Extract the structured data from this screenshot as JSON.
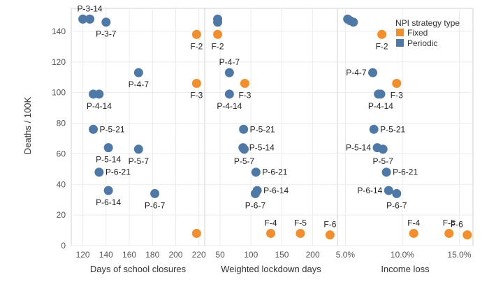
{
  "chart_data": {
    "type": "scatter",
    "ylabel": "Deaths / 100K",
    "ylim": [
      0,
      155
    ],
    "yticks": [
      0,
      20,
      40,
      60,
      80,
      100,
      120,
      140
    ],
    "grid": true,
    "legend": {
      "title": "NPI strategy type",
      "placement": "top-right",
      "entries": [
        {
          "name": "Fixed",
          "color": "#f28e2b"
        },
        {
          "name": "Periodic",
          "color": "#4e79a7"
        }
      ]
    },
    "colors": {
      "Fixed": "#f28e2b",
      "Periodic": "#4e79a7"
    },
    "panels": [
      {
        "xlabel": "Days of school closures",
        "xlim": [
          110,
          225
        ],
        "xticks": [
          {
            "v": 120,
            "t": "120"
          },
          {
            "v": 140,
            "t": "140"
          },
          {
            "v": 160,
            "t": "160"
          },
          {
            "v": 180,
            "t": "180"
          },
          {
            "v": 200,
            "t": "200"
          },
          {
            "v": 220,
            "t": "220"
          }
        ],
        "points": [
          {
            "x": 120,
            "y": 148,
            "type": "Periodic",
            "label": ""
          },
          {
            "x": 126,
            "y": 148,
            "type": "Periodic",
            "label": "P-3-14",
            "lpos": "above"
          },
          {
            "x": 140,
            "y": 146,
            "type": "Periodic",
            "label": "P-3-7",
            "lpos": "below"
          },
          {
            "x": 218,
            "y": 138,
            "type": "Fixed",
            "label": "F-2",
            "lpos": "below"
          },
          {
            "x": 168,
            "y": 113,
            "type": "Periodic",
            "label": "P-4-7",
            "lpos": "below"
          },
          {
            "x": 218,
            "y": 106,
            "type": "Fixed",
            "label": "F-3",
            "lpos": "below"
          },
          {
            "x": 129,
            "y": 99,
            "type": "Periodic",
            "label": ""
          },
          {
            "x": 134,
            "y": 99,
            "type": "Periodic",
            "label": "P-4-14",
            "lpos": "below"
          },
          {
            "x": 129,
            "y": 76,
            "type": "Periodic",
            "label": "P-5-21",
            "lpos": "right"
          },
          {
            "x": 142,
            "y": 64,
            "type": "Periodic",
            "label": "P-5-14",
            "lpos": "below"
          },
          {
            "x": 168,
            "y": 63,
            "type": "Periodic",
            "label": "P-5-7",
            "lpos": "below"
          },
          {
            "x": 134,
            "y": 48,
            "type": "Periodic",
            "label": "P-6-21",
            "lpos": "right"
          },
          {
            "x": 142,
            "y": 36,
            "type": "Periodic",
            "label": "P-6-14",
            "lpos": "below"
          },
          {
            "x": 182,
            "y": 34,
            "type": "Periodic",
            "label": "P-6-7",
            "lpos": "below"
          },
          {
            "x": 218,
            "y": 8,
            "type": "Fixed",
            "label": ""
          }
        ]
      },
      {
        "xlabel": "Weighted lockdown days",
        "xlim": [
          25,
          240
        ],
        "xticks": [
          {
            "v": 50,
            "t": "50"
          },
          {
            "v": 100,
            "t": "100"
          },
          {
            "v": 150,
            "t": "150"
          },
          {
            "v": 200,
            "t": "200"
          }
        ],
        "points": [
          {
            "x": 46,
            "y": 148,
            "type": "Periodic",
            "label": ""
          },
          {
            "x": 46,
            "y": 146,
            "type": "Periodic",
            "label": ""
          },
          {
            "x": 46,
            "y": 138,
            "type": "Fixed",
            "label": "F-2",
            "lpos": "below"
          },
          {
            "x": 65,
            "y": 113,
            "type": "Periodic",
            "label": "P-4-7",
            "lpos": "above"
          },
          {
            "x": 90,
            "y": 106,
            "type": "Fixed",
            "label": "F-3",
            "lpos": "below"
          },
          {
            "x": 65,
            "y": 99,
            "type": "Periodic",
            "label": "P-4-14",
            "lpos": "below"
          },
          {
            "x": 88,
            "y": 76,
            "type": "Periodic",
            "label": "P-5-21",
            "lpos": "right"
          },
          {
            "x": 87,
            "y": 64,
            "type": "Periodic",
            "label": "P-5-14",
            "lpos": "right"
          },
          {
            "x": 89,
            "y": 63,
            "type": "Periodic",
            "label": "P-5-7",
            "lpos": "below"
          },
          {
            "x": 108,
            "y": 48,
            "type": "Periodic",
            "label": "P-6-21",
            "lpos": "right"
          },
          {
            "x": 110,
            "y": 36,
            "type": "Periodic",
            "label": "P-6-14",
            "lpos": "right"
          },
          {
            "x": 107,
            "y": 34,
            "type": "Periodic",
            "label": "P-6-7",
            "lpos": "below"
          },
          {
            "x": 132,
            "y": 8,
            "type": "Fixed",
            "label": "F-4",
            "lpos": "above"
          },
          {
            "x": 180,
            "y": 8,
            "type": "Fixed",
            "label": "F-5",
            "lpos": "above"
          },
          {
            "x": 228,
            "y": 7,
            "type": "Fixed",
            "label": "F-6",
            "lpos": "above"
          }
        ]
      },
      {
        "xlabel": "Income loss",
        "xlim": [
          4.3,
          16.2
        ],
        "xticks": [
          {
            "v": 5,
            "t": "5.0%"
          },
          {
            "v": 10,
            "t": "10.0%"
          },
          {
            "v": 15,
            "t": "15.0%"
          }
        ],
        "points": [
          {
            "x": 5.2,
            "y": 148,
            "type": "Periodic",
            "label": ""
          },
          {
            "x": 5.4,
            "y": 147,
            "type": "Periodic",
            "label": ""
          },
          {
            "x": 5.7,
            "y": 146,
            "type": "Periodic",
            "label": ""
          },
          {
            "x": 8.2,
            "y": 138,
            "type": "Fixed",
            "label": "F-2",
            "lpos": "below"
          },
          {
            "x": 7.4,
            "y": 113,
            "type": "Periodic",
            "label": "P-4-7",
            "lpos": "left"
          },
          {
            "x": 9.5,
            "y": 106,
            "type": "Fixed",
            "label": "F-3",
            "lpos": "below"
          },
          {
            "x": 7.9,
            "y": 99,
            "type": "Periodic",
            "label": ""
          },
          {
            "x": 8.1,
            "y": 99,
            "type": "Periodic",
            "label": "P-4-14",
            "lpos": "below"
          },
          {
            "x": 7.5,
            "y": 76,
            "type": "Periodic",
            "label": "P-5-21",
            "lpos": "right"
          },
          {
            "x": 7.8,
            "y": 64,
            "type": "Periodic",
            "label": "P-5-14",
            "lpos": "left"
          },
          {
            "x": 8.3,
            "y": 63,
            "type": "Periodic",
            "label": "P-5-7",
            "lpos": "below"
          },
          {
            "x": 8.6,
            "y": 48,
            "type": "Periodic",
            "label": "P-6-21",
            "lpos": "right"
          },
          {
            "x": 8.8,
            "y": 36,
            "type": "Periodic",
            "label": "P-6-14",
            "lpos": "left"
          },
          {
            "x": 9.5,
            "y": 34,
            "type": "Periodic",
            "label": "P-6-7",
            "lpos": "below"
          },
          {
            "x": 11.0,
            "y": 8,
            "type": "Fixed",
            "label": "F-4",
            "lpos": "above"
          },
          {
            "x": 14.1,
            "y": 8,
            "type": "Fixed",
            "label": "F-5",
            "lpos": "above"
          },
          {
            "x": 15.7,
            "y": 7,
            "type": "Fixed",
            "label": "F-6",
            "lpos": "above-left"
          }
        ]
      }
    ]
  }
}
